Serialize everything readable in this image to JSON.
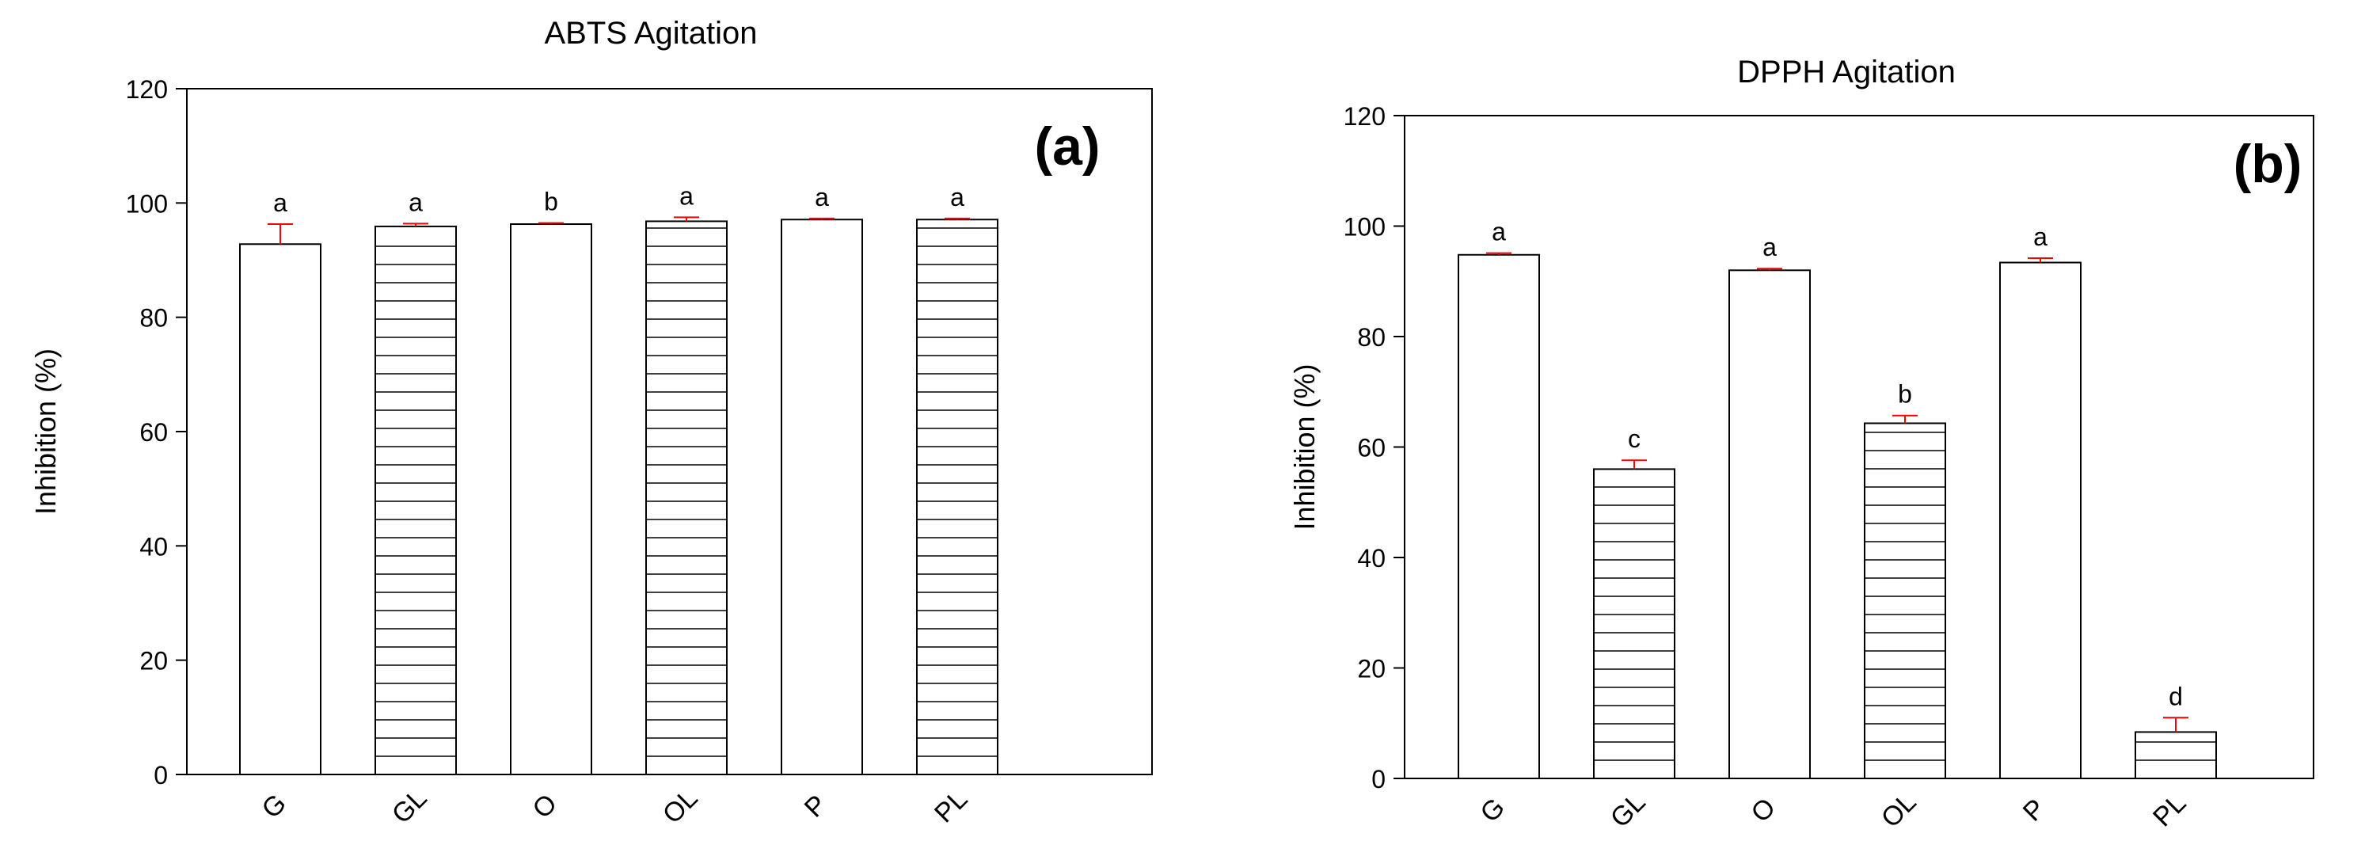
{
  "colors": {
    "error_bar": "#ff0000",
    "bar_fill": "#ffffff",
    "bar_stroke": "#000000",
    "hatch": "#000000"
  },
  "chart_data": [
    {
      "type": "bar",
      "title": "ABTS Agitation",
      "panel_label": "(a)",
      "xlabel": "",
      "ylabel": "Inhibition (%)",
      "ylim": [
        0,
        120
      ],
      "yticks": [
        0,
        20,
        40,
        60,
        80,
        100,
        120
      ],
      "grid": false,
      "categories": [
        "G",
        "GL",
        "O",
        "OL",
        "P",
        "PL"
      ],
      "values": [
        92.8,
        95.9,
        96.3,
        96.8,
        97.1,
        97.1
      ],
      "errors": [
        3.5,
        0.5,
        0.2,
        0.7,
        0.2,
        0.2
      ],
      "significance_letters": [
        "a",
        "a",
        "b",
        "a",
        "a",
        "a"
      ],
      "hatched": [
        false,
        true,
        false,
        true,
        false,
        true
      ]
    },
    {
      "type": "bar",
      "title": "DPPH Agitation",
      "panel_label": "(b)",
      "xlabel": "",
      "ylabel": "Inhibition (%)",
      "ylim": [
        0,
        120
      ],
      "yticks": [
        0,
        20,
        40,
        60,
        80,
        100,
        120
      ],
      "grid": false,
      "categories": [
        "G",
        "GL",
        "O",
        "OL",
        "P",
        "PL"
      ],
      "values": [
        94.8,
        56.0,
        92.0,
        64.3,
        93.4,
        8.4
      ],
      "errors": [
        0.3,
        1.6,
        0.3,
        1.4,
        0.8,
        2.6
      ],
      "significance_letters": [
        "a",
        "c",
        "a",
        "b",
        "a",
        "d"
      ],
      "hatched": [
        false,
        true,
        false,
        true,
        false,
        true
      ]
    }
  ]
}
